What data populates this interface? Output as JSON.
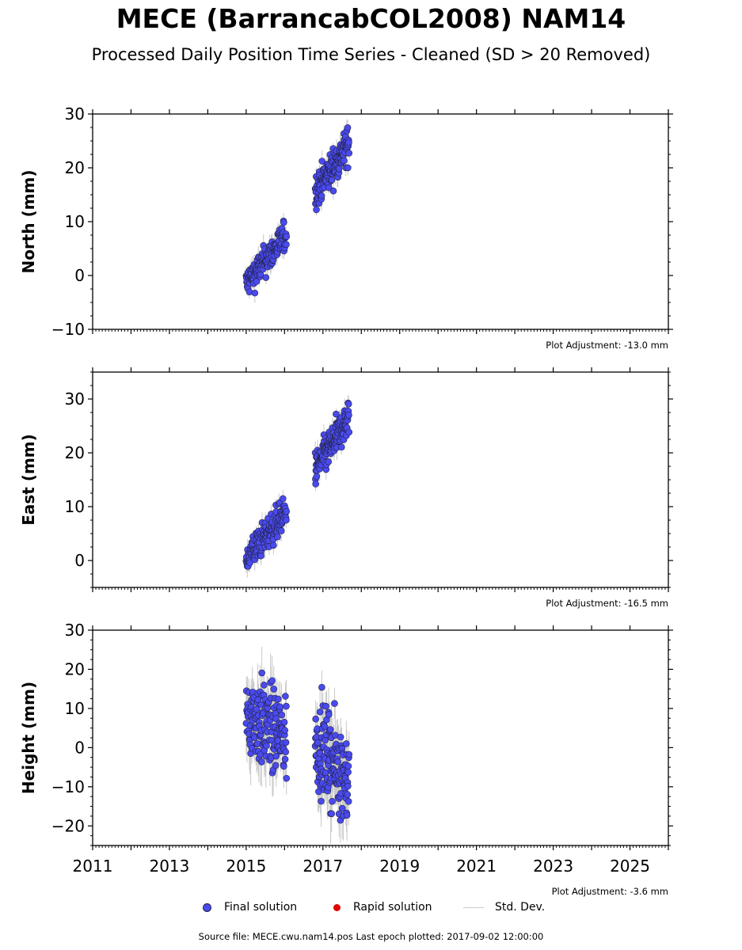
{
  "title": "MECE (BarrancabCOL2008) NAM14",
  "subtitle": "Processed Daily Position Time Series - Cleaned (SD > 20 Removed)",
  "colors": {
    "final": "#4a4af0",
    "final_edge": "#222244",
    "rapid": "#e00000",
    "stddev": "#c8c8c8"
  },
  "legend": {
    "final": "Final solution",
    "rapid": "Rapid solution",
    "stddev": "Std. Dev."
  },
  "source_text": "Source file: MECE.cwu.nam14.pos  Last epoch plotted: 2017-09-02 12:00:00",
  "chart_data": [
    {
      "type": "scatter",
      "ylabel": "North (mm)",
      "ylim": [
        -10,
        30
      ],
      "yticks": [
        -10,
        0,
        10,
        20,
        30
      ],
      "xlim": [
        2011,
        2026
      ],
      "adjustment": "Plot Adjustment: -13.0 mm",
      "segments": [
        {
          "x": [
            2015.0,
            2016.05
          ],
          "y": [
            -1.5,
            7.5
          ],
          "spread": 1.4
        },
        {
          "x": [
            2016.8,
            2017.68
          ],
          "y": [
            15.5,
            24.5
          ],
          "spread": 1.6
        }
      ]
    },
    {
      "type": "scatter",
      "ylabel": "East (mm)",
      "ylim": [
        -5,
        35
      ],
      "yticks": [
        0,
        10,
        20,
        30
      ],
      "xlim": [
        2011,
        2026
      ],
      "adjustment": "Plot Adjustment: -16.5 mm",
      "segments": [
        {
          "x": [
            2015.0,
            2016.05
          ],
          "y": [
            0.5,
            9.0
          ],
          "spread": 1.5
        },
        {
          "x": [
            2016.8,
            2017.68
          ],
          "y": [
            17.0,
            26.5
          ],
          "spread": 1.6
        }
      ]
    },
    {
      "type": "scatter",
      "ylabel": "Height (mm)",
      "ylim": [
        -25,
        30
      ],
      "yticks": [
        -20,
        -10,
        0,
        10,
        20,
        30
      ],
      "xlim": [
        2011,
        2026
      ],
      "xticks": [
        2011,
        2013,
        2015,
        2017,
        2019,
        2021,
        2023,
        2025
      ],
      "adjustment": "Plot Adjustment: -3.6 mm",
      "segments": [
        {
          "x": [
            2015.0,
            2016.05
          ],
          "y": [
            9.0,
            2.0
          ],
          "spread": 5.5
        },
        {
          "x": [
            2016.8,
            2017.68
          ],
          "y": [
            1.0,
            -8.0
          ],
          "spread": 5.5
        }
      ]
    }
  ]
}
